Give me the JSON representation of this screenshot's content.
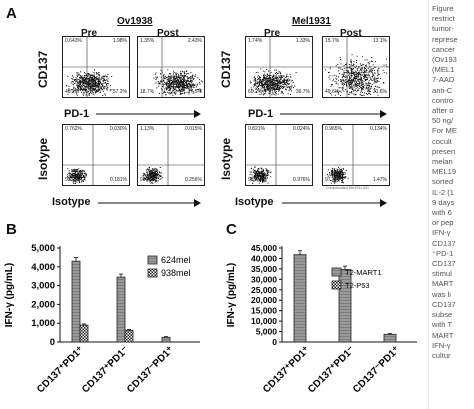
{
  "panel_a": {
    "label": "A",
    "samples": [
      "Ov1938",
      "Mel1931"
    ],
    "conditions": [
      "Pre",
      "Post"
    ],
    "row_labels": [
      "CD137",
      "Isotype"
    ],
    "x_labels": [
      "PD-1",
      "Isotype"
    ],
    "flow_quadrants": [
      {
        "tl": "0.643%",
        "tr": "1.98%",
        "bl": "40.2%",
        "br": "57.2%"
      },
      {
        "tl": "1.35%",
        "tr": "2.43%",
        "bl": "18.7%",
        "br": "77.5%"
      },
      {
        "tl": "1.74%",
        "tr": "1.33%",
        "bl": "60.2%",
        "br": "36.7%"
      },
      {
        "tl": "15.7%",
        "tr": "13.1%",
        "bl": "49.6%",
        "br": "21.6%"
      },
      {
        "tl": "0.762%",
        "tr": "0.030%",
        "bl": "99.0%",
        "br": "0.181%"
      },
      {
        "tl": "1.13%",
        "tr": "0.015%",
        "bl": "98.6%",
        "br": "0.256%"
      },
      {
        "tl": "0.821%",
        "tr": "0.024%",
        "bl": "98.2%",
        "br": "0.976%"
      },
      {
        "tl": "0.965%",
        "tr": "0.134%",
        "bl": "97.4%",
        "br": "1.47%"
      }
    ],
    "small_note": "Compensated Mel1931.001"
  },
  "panel_b": {
    "label": "B",
    "ylabel": "IFN-γ (pg/mL)",
    "yticks": [
      "0",
      "1,000",
      "2,000",
      "3,000",
      "4,000",
      "5,000"
    ],
    "groups": [
      "CD137⁺PD1⁺",
      "CD137⁺PD1⁻",
      "CD137⁻PD1⁺"
    ],
    "legend": [
      "624mel",
      "938mel"
    ]
  },
  "panel_c": {
    "label": "C",
    "ylabel": "IFN-γ (pg/mL)",
    "yticks": [
      "0",
      "5,000",
      "10,000",
      "15,000",
      "20,000",
      "25,000",
      "30,000",
      "35,000",
      "40,000",
      "45,000"
    ],
    "groups": [
      "CD137⁺PD1⁺",
      "CD137⁺PD1⁻",
      "CD137⁻PD1⁺"
    ],
    "legend": [
      "T2-MART1",
      "T2-P53"
    ]
  },
  "chart_data": [
    {
      "type": "bar",
      "categories": [
        "CD137⁺PD1⁺",
        "CD137⁺PD1⁻",
        "CD137⁻PD1⁺"
      ],
      "series": [
        {
          "name": "624mel",
          "values": [
            4300,
            3450,
            250
          ]
        },
        {
          "name": "938mel",
          "values": [
            900,
            620,
            0
          ]
        }
      ],
      "ylabel": "IFN-γ (pg/mL)",
      "ylim": [
        0,
        5000
      ]
    },
    {
      "type": "bar",
      "categories": [
        "CD137⁺PD1⁺",
        "CD137⁺PD1⁻",
        "CD137⁻PD1⁺"
      ],
      "series": [
        {
          "name": "T2-MART1",
          "values": [
            41800,
            34700,
            3700
          ]
        },
        {
          "name": "T2-P53",
          "values": [
            0,
            0,
            0
          ]
        }
      ],
      "ylabel": "IFN-γ (pg/mL)",
      "ylim": [
        0,
        45000
      ]
    }
  ],
  "caption_lines": [
    "Figure",
    "restrict",
    "tumor-",
    "represe",
    "cancer",
    "(Ov193",
    "(MEL1",
    "7-AAD",
    "anti-C",
    "contro",
    "after o",
    "50 ng/",
    "For ME",
    "cocult",
    "presen",
    "melan",
    "MEL19",
    "sorted",
    "IL-2 (1",
    "9 days",
    "with 6",
    "or pep",
    "IFN-γ",
    "CD137",
    "⁺PD-1",
    "CD137",
    "stimul",
    "MART",
    "was li",
    "CD137",
    "subse",
    "with T",
    "MART",
    "IFN-γ",
    "cultur"
  ]
}
